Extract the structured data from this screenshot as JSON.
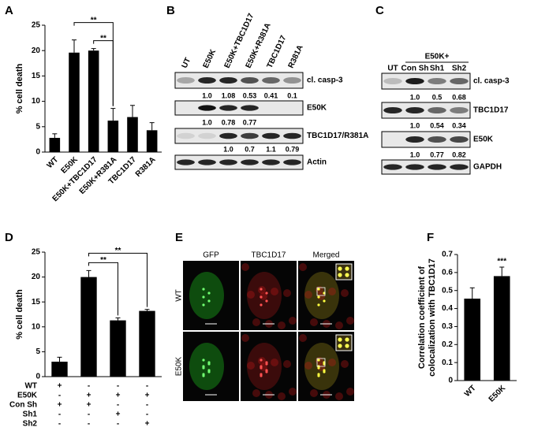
{
  "panel_labels": [
    "A",
    "B",
    "C",
    "D",
    "E",
    "F"
  ],
  "chart_data": [
    {
      "type": "bar",
      "ylabel": [
        "% cell death"
      ],
      "categories": [
        "WT",
        "E50K",
        "E50K+TBC1D17",
        "E50K+R381A",
        "TBC1D17",
        "R381A"
      ],
      "values": [
        2.8,
        19.6,
        20.0,
        6.2,
        6.9,
        4.3
      ],
      "errors": [
        0.8,
        2.5,
        0.4,
        2.4,
        2.3,
        1.5
      ],
      "color": "#000000",
      "ylim": [
        0,
        25
      ],
      "yticks": [
        0,
        5,
        10,
        15,
        20,
        25
      ],
      "brackets": [
        {
          "label": "**",
          "from": 1,
          "to": 3
        },
        {
          "label": "**",
          "from": 2,
          "to": 3
        }
      ]
    },
    {
      "type": "bar",
      "ylabel": [
        "% cell death"
      ],
      "values": [
        3.0,
        20.0,
        11.3,
        13.2
      ],
      "errors": [
        0.9,
        1.3,
        0.5,
        0.3
      ],
      "color": "#000000",
      "ylim": [
        0,
        25
      ],
      "yticks": [
        0,
        5,
        10,
        15,
        20,
        25
      ],
      "brackets": [
        {
          "label": "**",
          "from": 1,
          "to": 3
        },
        {
          "label": "**",
          "from": 1,
          "to": 2
        }
      ],
      "conditions": [
        {
          "label": "WT",
          "cells": [
            "+",
            "-",
            "-",
            "-"
          ]
        },
        {
          "label": "E50K",
          "cells": [
            "-",
            "+",
            "+",
            "+"
          ]
        },
        {
          "label": "Con Sh",
          "cells": [
            "+",
            "+",
            "-",
            "-"
          ]
        },
        {
          "label": "Sh1",
          "cells": [
            "-",
            "-",
            "+",
            "-"
          ]
        },
        {
          "label": "Sh2",
          "cells": [
            "-",
            "-",
            "-",
            "+"
          ]
        }
      ]
    },
    {
      "type": "bar",
      "ylabel": [
        "Correlation coefficient of",
        "colocalization with TBC1D17"
      ],
      "categories": [
        "WT",
        "E50K"
      ],
      "values": [
        0.455,
        0.58
      ],
      "errors": [
        0.06,
        0.05
      ],
      "color": "#000000",
      "ylim": [
        0,
        0.7
      ],
      "yticks": [
        0,
        0.1,
        0.2,
        0.3,
        0.4,
        0.5,
        0.6,
        0.7
      ],
      "marks": [
        {
          "label": "***",
          "index": 1
        }
      ]
    }
  ],
  "blots": [
    {
      "lanes": [
        "UT",
        "E50K",
        "E50K+TBC1D17",
        "E50K+R381A",
        "TBC1D17",
        "R381A"
      ],
      "rows": [
        {
          "name": "cl. casp-3",
          "quant": [
            null,
            "1.0",
            "1.08",
            "0.53",
            "0.41",
            "0.1"
          ]
        },
        {
          "name": "E50K",
          "quant": [
            null,
            "1.0",
            "0.78",
            "0.77",
            null,
            null
          ]
        },
        {
          "name": "TBC1D17/R381A",
          "quant": [
            null,
            null,
            "1.0",
            "0.7",
            "1.1",
            "0.79"
          ]
        },
        {
          "name": "Actin",
          "quant": [
            null,
            null,
            null,
            null,
            null,
            null
          ]
        }
      ]
    },
    {
      "header": "E50K+",
      "lanes": [
        "UT",
        "Con Sh",
        "Sh1",
        "Sh2"
      ],
      "rows": [
        {
          "name": "cl. casp-3",
          "quant": [
            null,
            "1.0",
            "0.5",
            "0.68"
          ]
        },
        {
          "name": "TBC1D17",
          "quant": [
            null,
            "1.0",
            "0.54",
            "0.34"
          ]
        },
        {
          "name": "E50K",
          "quant": [
            null,
            "1.0",
            "0.77",
            "0.82"
          ]
        },
        {
          "name": "GAPDH",
          "quant": [
            null,
            null,
            null,
            null
          ]
        }
      ]
    }
  ],
  "micrographs": {
    "columns": [
      "GFP",
      "TBC1D17",
      "Merged"
    ],
    "rows": [
      "WT",
      "E50K"
    ]
  }
}
